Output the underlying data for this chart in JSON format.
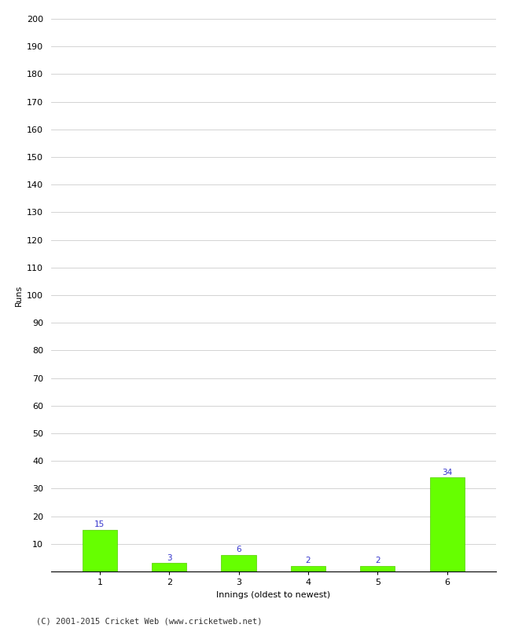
{
  "categories": [
    "1",
    "2",
    "3",
    "4",
    "5",
    "6"
  ],
  "values": [
    15,
    3,
    6,
    2,
    2,
    34
  ],
  "bar_color": "#66ff00",
  "bar_edge_color": "#55cc00",
  "xlabel": "Innings (oldest to newest)",
  "ylabel": "Runs",
  "ylim": [
    0,
    200
  ],
  "yticks": [
    0,
    10,
    20,
    30,
    40,
    50,
    60,
    70,
    80,
    90,
    100,
    110,
    120,
    130,
    140,
    150,
    160,
    170,
    180,
    190,
    200
  ],
  "label_color": "#3333cc",
  "label_fontsize": 7.5,
  "axis_label_fontsize": 8,
  "tick_fontsize": 8,
  "footer_text": "(C) 2001-2015 Cricket Web (www.cricketweb.net)",
  "footer_fontsize": 7.5,
  "background_color": "#ffffff",
  "grid_color": "#cccccc",
  "spine_color": "#000000"
}
